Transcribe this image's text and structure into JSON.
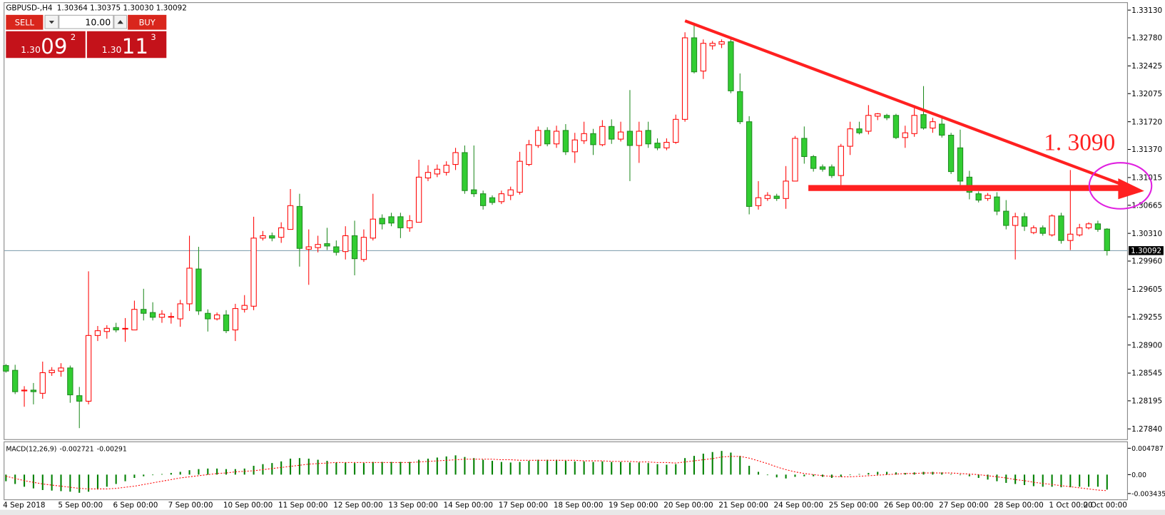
{
  "header": {
    "symbol": "GBPUSD-,H4",
    "ohlc": "1.30364 1.30375 1.30030 1.30092"
  },
  "trade_panel": {
    "sell": "SELL",
    "buy": "BUY",
    "volume": "10.00",
    "sell_price": {
      "prefix": "1.30",
      "big": "09",
      "sup": "2"
    },
    "buy_price": {
      "prefix": "1.30",
      "big": "11",
      "sup": "3"
    }
  },
  "chart_data": [
    {
      "type": "candlestick",
      "categories": [
        "4 Sep 2018",
        null,
        null,
        null,
        null,
        null,
        "5 Sep 00:00",
        null,
        null,
        null,
        null,
        null,
        "6 Sep 00:00",
        null,
        null,
        null,
        null,
        null,
        "7 Sep 00:00",
        null,
        null,
        null,
        null,
        null,
        "10 Sep 00:00",
        null,
        null,
        null,
        null,
        null,
        "11 Sep 00:00",
        null,
        null,
        null,
        null,
        null,
        "12 Sep 00:00",
        null,
        null,
        null,
        null,
        null,
        "13 Sep 00:00",
        null,
        null,
        null,
        null,
        null,
        "14 Sep 00:00",
        null,
        null,
        null,
        null,
        null,
        "17 Sep 00:00",
        null,
        null,
        null,
        null,
        null,
        "18 Sep 00:00",
        null,
        null,
        null,
        null,
        null,
        "19 Sep 00:00",
        null,
        null,
        null,
        null,
        null,
        "20 Sep 00:00",
        null,
        null,
        null,
        null,
        null,
        "21 Sep 00:00",
        null,
        null,
        null,
        null,
        null,
        "24 Sep 00:00",
        null,
        null,
        null,
        null,
        null,
        "25 Sep 00:00",
        null,
        null,
        null,
        null,
        null,
        "26 Sep 00:00",
        null,
        null,
        null,
        null,
        null,
        "27 Sep 00:00",
        null,
        null,
        null,
        null,
        null,
        "28 Sep 00:00",
        null,
        null,
        null,
        null,
        null,
        "1 Oct 00:00",
        null,
        null,
        null,
        null,
        null,
        "2 Oct 00:00"
      ],
      "open": [
        1.2864,
        1.2858,
        1.2832,
        1.2833,
        1.2829,
        1.2855,
        1.2857,
        1.2861,
        1.2826,
        1.2819,
        1.2902,
        1.2907,
        1.2912,
        1.2911,
        1.2909,
        1.2935,
        1.2931,
        1.2925,
        1.2925,
        1.2923,
        1.2942,
        1.2986,
        1.293,
        1.2923,
        1.2928,
        1.2909,
        1.2935,
        1.2939,
        1.3025,
        1.3028,
        1.3026,
        1.3036,
        1.3065,
        1.3011,
        1.3013,
        1.3018,
        1.3014,
        1.3008,
        1.3028,
        1.2998,
        1.3025,
        1.305,
        1.3052,
        1.3052,
        1.3038,
        1.3045,
        1.3101,
        1.3106,
        1.3108,
        1.3118,
        1.3133,
        1.3086,
        1.3081,
        1.3076,
        1.3071,
        1.3079,
        1.3083,
        1.3118,
        1.3142,
        1.3161,
        1.3144,
        1.3161,
        1.3134,
        1.3148,
        1.3157,
        1.3143,
        1.3166,
        1.315,
        1.316,
        1.3142,
        1.3161,
        1.3145,
        1.3139,
        1.3146,
        1.3175,
        1.3278,
        1.3236,
        1.3268,
        1.327,
        1.3273,
        1.321,
        1.3172,
        1.3066,
        1.3075,
        1.3078,
        1.3075,
        1.3097,
        1.3151,
        1.3128,
        1.3115,
        1.3115,
        1.3104,
        1.3141,
        1.3163,
        1.316,
        1.3179,
        1.318,
        1.318,
        1.3152,
        1.3157,
        1.3181,
        1.3164,
        1.3169,
        1.3155,
        1.3139,
        1.3102,
        1.3081,
        1.3075,
        1.3077,
        1.3059,
        1.3041,
        1.3052,
        1.3032,
        1.3038,
        1.3029,
        1.3053,
        1.3022,
        1.3029,
        1.3038,
        1.3043,
        1.30364
      ],
      "high": [
        1.2866,
        1.2865,
        1.2838,
        1.2842,
        1.2869,
        1.2862,
        1.2867,
        1.2864,
        1.2837,
        1.2983,
        1.2914,
        1.2915,
        1.2918,
        1.2924,
        1.2946,
        1.2961,
        1.2944,
        1.2934,
        1.2931,
        1.2947,
        1.3028,
        1.3014,
        1.2935,
        1.2931,
        1.2934,
        1.2942,
        1.2953,
        1.3052,
        1.3034,
        1.3032,
        1.3045,
        1.3087,
        1.3081,
        1.3036,
        1.3028,
        1.3038,
        1.3022,
        1.304,
        1.3047,
        1.3036,
        1.3081,
        1.3055,
        1.3057,
        1.3057,
        1.3054,
        1.3124,
        1.3117,
        1.3118,
        1.3122,
        1.3139,
        1.3142,
        1.3142,
        1.3085,
        1.3079,
        1.3085,
        1.309,
        1.3134,
        1.3149,
        1.3166,
        1.3165,
        1.3167,
        1.3169,
        1.3158,
        1.3172,
        1.3163,
        1.3174,
        1.3175,
        1.3172,
        1.3212,
        1.3172,
        1.3172,
        1.3151,
        1.3151,
        1.3181,
        1.3285,
        1.3297,
        1.3276,
        1.3274,
        1.3276,
        1.3276,
        1.3233,
        1.3179,
        1.3097,
        1.3083,
        1.3081,
        1.3116,
        1.3154,
        1.3166,
        1.313,
        1.3118,
        1.3118,
        1.3144,
        1.3172,
        1.3172,
        1.3193,
        1.3183,
        1.3182,
        1.3182,
        1.3167,
        1.3193,
        1.3217,
        1.3177,
        1.3177,
        1.3158,
        1.3162,
        1.311,
        1.3084,
        1.3082,
        1.3083,
        1.3073,
        1.3057,
        1.3057,
        1.3041,
        1.3041,
        1.3055,
        1.3057,
        1.3111,
        1.3043,
        1.3045,
        1.3047,
        1.30375
      ],
      "low": [
        1.2855,
        1.2828,
        1.2812,
        1.2815,
        1.2822,
        1.2851,
        1.285,
        1.2817,
        1.2785,
        1.2815,
        1.2895,
        1.2898,
        1.2906,
        1.2894,
        1.2909,
        1.2921,
        1.2921,
        1.2918,
        1.2917,
        1.2913,
        1.2933,
        1.2928,
        1.2907,
        1.2921,
        1.2905,
        1.2895,
        1.2931,
        1.2934,
        1.3022,
        1.3021,
        1.3019,
        1.3036,
        1.2989,
        1.2966,
        1.3007,
        1.301,
        1.3003,
        1.2998,
        1.2978,
        1.2995,
        1.3022,
        1.3036,
        1.304,
        1.3025,
        1.3033,
        1.3045,
        1.3097,
        1.3102,
        1.3104,
        1.3111,
        1.3081,
        1.3077,
        1.3061,
        1.3067,
        1.3068,
        1.3073,
        1.308,
        1.3116,
        1.3139,
        1.3141,
        1.3139,
        1.313,
        1.312,
        1.3144,
        1.313,
        1.3141,
        1.3144,
        1.3147,
        1.3097,
        1.312,
        1.3139,
        1.3136,
        1.3136,
        1.3144,
        1.3172,
        1.3233,
        1.3226,
        1.3263,
        1.3265,
        1.3208,
        1.3169,
        1.3055,
        1.3061,
        1.3072,
        1.3072,
        1.3062,
        1.3097,
        1.3119,
        1.3109,
        1.3109,
        1.3101,
        1.3092,
        1.313,
        1.3156,
        1.3156,
        1.3174,
        1.3174,
        1.315,
        1.3139,
        1.3153,
        1.3162,
        1.3158,
        1.3152,
        1.3106,
        1.3092,
        1.3074,
        1.307,
        1.3072,
        1.3054,
        1.3036,
        1.2998,
        1.3034,
        1.303,
        1.3028,
        1.3027,
        1.3018,
        1.301,
        1.3027,
        1.3036,
        1.3033,
        1.3003
      ],
      "close": [
        1.2857,
        1.2831,
        1.2833,
        1.2831,
        1.2855,
        1.2858,
        1.2861,
        1.2827,
        1.2819,
        1.2902,
        1.2908,
        1.2911,
        1.2909,
        1.2911,
        1.2935,
        1.293,
        1.2925,
        1.2929,
        1.2926,
        1.2942,
        1.2987,
        1.2933,
        1.2923,
        1.2928,
        1.2908,
        1.2936,
        1.294,
        1.3025,
        1.3028,
        1.3025,
        1.3038,
        1.3066,
        1.3012,
        1.3014,
        1.3017,
        1.3015,
        1.3007,
        1.3028,
        1.2999,
        1.3026,
        1.3049,
        1.3043,
        1.3044,
        1.3038,
        1.3047,
        1.3102,
        1.3108,
        1.3112,
        1.3117,
        1.3133,
        1.3085,
        1.3081,
        1.3066,
        1.307,
        1.3081,
        1.3086,
        1.3122,
        1.3143,
        1.3161,
        1.3144,
        1.316,
        1.3134,
        1.3149,
        1.3157,
        1.3143,
        1.3166,
        1.315,
        1.3159,
        1.3142,
        1.316,
        1.3144,
        1.3139,
        1.3146,
        1.3175,
        1.3278,
        1.3235,
        1.3271,
        1.3271,
        1.3273,
        1.3211,
        1.3172,
        1.3065,
        1.3076,
        1.3079,
        1.3075,
        1.3097,
        1.3151,
        1.3128,
        1.3113,
        1.3112,
        1.3104,
        1.3141,
        1.3163,
        1.3158,
        1.318,
        1.3182,
        1.3177,
        1.3152,
        1.3158,
        1.318,
        1.3164,
        1.3172,
        1.3155,
        1.3109,
        1.3097,
        1.3083,
        1.3073,
        1.3079,
        1.3059,
        1.3041,
        1.3052,
        1.304,
        1.3038,
        1.3031,
        1.3053,
        1.3022,
        1.303,
        1.3038,
        1.3043,
        1.3036,
        1.30092
      ],
      "up_color": "#ff0000",
      "down_color": "#32cd32",
      "ylim": [
        1.2771,
        1.3322
      ],
      "yticks": [
        {
          "value": 1.3313,
          "label": "1.33130"
        },
        {
          "value": 1.3278,
          "label": "1.32780"
        },
        1.32425,
        1.32075,
        {
          "value": 1.3172,
          "label": "1.31720"
        },
        {
          "value": 1.3137,
          "label": "1.31370"
        },
        1.31015,
        1.30665,
        {
          "value": 1.3031,
          "label": "1.30310"
        },
        {
          "value": 1.2996,
          "label": "1.29960"
        },
        1.29605,
        1.29255,
        {
          "value": 1.289,
          "label": "1.28900"
        },
        1.28545,
        1.28195,
        {
          "value": 1.2784,
          "label": "1.27840"
        }
      ],
      "last_price": {
        "value": 1.30092,
        "label": "1.30092"
      },
      "annotation": "1. 3090",
      "grid": false
    },
    {
      "type": "bar",
      "title": "MACD(12,26,9)",
      "series": [
        {
          "color": "#008000",
          "values": [
            -0.0012,
            -0.0017,
            -0.0022,
            -0.0025,
            -0.0028,
            -0.0029,
            -0.003,
            -0.0031,
            -0.0033,
            -0.0031,
            -0.0027,
            -0.0022,
            -0.0017,
            -0.0012,
            -0.0006,
            -0.0003,
            -0.0001,
            0.0001,
            0.0003,
            0.0005,
            0.0008,
            0.001,
            0.0011,
            0.0011,
            0.001,
            0.001,
            0.0011,
            0.0016,
            0.0019,
            0.0021,
            0.0024,
            0.0029,
            0.003,
            0.0029,
            0.0027,
            0.0025,
            0.0022,
            0.0022,
            0.0021,
            0.0021,
            0.0023,
            0.0023,
            0.0023,
            0.0023,
            0.0023,
            0.0027,
            0.0029,
            0.0031,
            0.0033,
            0.0035,
            0.0032,
            0.003,
            0.0027,
            0.0025,
            0.0023,
            0.0022,
            0.0023,
            0.0025,
            0.0027,
            0.0027,
            0.0027,
            0.0025,
            0.0024,
            0.0024,
            0.0023,
            0.0024,
            0.0023,
            0.0023,
            0.0022,
            0.0022,
            0.0021,
            0.0019,
            0.0018,
            0.0019,
            0.003,
            0.0034,
            0.0038,
            0.0041,
            0.0043,
            0.004,
            0.0034,
            0.0016,
            0.0005,
            -0.0001,
            -0.0005,
            -0.0007,
            -0.0004,
            -0.0003,
            -0.0003,
            -0.0004,
            -0.0006,
            -0.0004,
            -0.0001,
            0.0001,
            0.0003,
            0.0005,
            0.0005,
            0.0004,
            0.0003,
            0.0004,
            0.0005,
            0.0005,
            0.0004,
            0.0001,
            -0.0001,
            -0.0003,
            -0.0006,
            -0.0009,
            -0.0012,
            -0.0015,
            -0.0017,
            -0.0019,
            -0.0021,
            -0.0022,
            -0.0022,
            -0.0023,
            -0.0023,
            -0.0022,
            -0.0022,
            -0.0022,
            -0.002721
          ]
        },
        {
          "color": "#ff0000",
          "type": "line",
          "values": [
            -0.0003,
            -0.0007,
            -0.0011,
            -0.0014,
            -0.0017,
            -0.0019,
            -0.0021,
            -0.0023,
            -0.0025,
            -0.0026,
            -0.0026,
            -0.0026,
            -0.0025,
            -0.0023,
            -0.0021,
            -0.0018,
            -0.0015,
            -0.0012,
            -0.0009,
            -0.0006,
            -0.0004,
            -0.0002,
            0.0,
            0.0002,
            0.0003,
            0.0005,
            0.0006,
            0.0007,
            0.0009,
            0.0011,
            0.0013,
            0.0015,
            0.0017,
            0.0019,
            0.002,
            0.0021,
            0.0022,
            0.0022,
            0.0022,
            0.0022,
            0.0022,
            0.0022,
            0.0022,
            0.0022,
            0.0022,
            0.0023,
            0.0024,
            0.0025,
            0.0026,
            0.0027,
            0.0028,
            0.0028,
            0.0028,
            0.0028,
            0.0027,
            0.0027,
            0.0026,
            0.0026,
            0.0026,
            0.0026,
            0.0026,
            0.0026,
            0.0026,
            0.0025,
            0.0025,
            0.0025,
            0.0024,
            0.0024,
            0.0024,
            0.0023,
            0.0023,
            0.0022,
            0.0022,
            0.0021,
            0.0023,
            0.0025,
            0.0027,
            0.0029,
            0.0032,
            0.0033,
            0.0033,
            0.003,
            0.0025,
            0.002,
            0.0014,
            0.0009,
            0.0005,
            0.0002,
            0.0,
            -0.0002,
            -0.0003,
            -0.0004,
            -0.0004,
            -0.0003,
            -0.0002,
            -0.0001,
            0.0,
            0.0001,
            0.0002,
            0.0002,
            0.0003,
            0.0003,
            0.0003,
            0.0003,
            0.0002,
            0.0001,
            0.0,
            -0.0002,
            -0.0004,
            -0.0006,
            -0.0009,
            -0.0011,
            -0.0014,
            -0.0016,
            -0.0018,
            -0.002,
            -0.0022,
            -0.0024,
            -0.0026,
            -0.0028,
            -0.00291
          ]
        }
      ],
      "ylim": [
        -0.0045,
        0.00589
      ],
      "yticks": [
        0.004787,
        {
          "value": 0,
          "label": "0.00"
        },
        -0.003435
      ]
    }
  ]
}
